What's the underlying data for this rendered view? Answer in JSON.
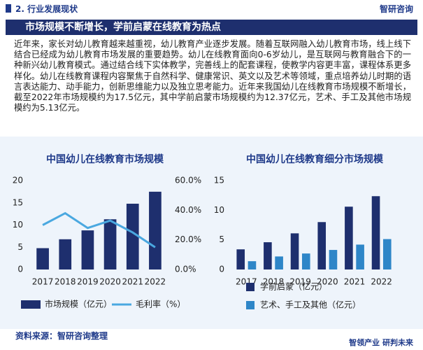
{
  "header": {
    "title": "2. 行业发展现状",
    "logo": "智研咨询"
  },
  "banner": "市场规模不断增长，学前启蒙在线教育为热点",
  "paragraph": "近年来，家长对幼儿教育越来越重视，幼儿教育产业逐步发展。随着互联网融入幼儿教育市场，线上线下结合已经成为幼儿教育市场发展的重要趋势。幼儿在线教育面向0-6岁幼儿，是互联网与教育融合下的一种新兴幼儿教育模式。通过结合线下实体教学，完善线上的配套课程，使教学内容更丰富，课程体系更多样化。幼儿在线教育课程内容聚焦于自然科学、健康常识、英文以及艺术等领域，重点培养幼儿时期的语言表达能力、动手能力，创新思维能力以及独立思考能力。近年来我国幼儿在线教育市场规模不断增长，截至2022年市场规模约为17.5亿元，其中学前启蒙市场规模约为12.37亿元，艺术、手工及其他市场规模约为5.13亿元。",
  "chart_data": [
    {
      "type": "combo",
      "title": "中国幼儿在线教育市场规模",
      "categories": [
        "2017",
        "2018",
        "2019",
        "2020",
        "2021",
        "2022"
      ],
      "series": [
        {
          "name": "市场规模（亿元）",
          "color": "#1e2f6e",
          "values": [
            4.8,
            6.8,
            8.8,
            11.3,
            14.8,
            17.5
          ]
        },
        {
          "name": "毛利率（%）",
          "color": "#4aa8e0",
          "values": [
            30,
            38,
            28,
            33,
            25,
            15
          ],
          "axis": "y2"
        }
      ],
      "ylim": [
        0,
        20
      ],
      "yticks": [
        0,
        5,
        10,
        15,
        20
      ],
      "y2lim": [
        0,
        60
      ],
      "y2ticks": [
        {
          "value": 0,
          "label": "0.0%"
        },
        {
          "value": 20,
          "label": "20.0%"
        },
        {
          "value": 40,
          "label": "40.0%"
        },
        {
          "value": 60,
          "label": "60.0%"
        }
      ],
      "legend": "bottom"
    },
    {
      "type": "bar",
      "title": "中国幼儿在线教育细分市场规模",
      "categories": [
        "2017",
        "2018",
        "2019",
        "2020",
        "2021",
        "2022"
      ],
      "series": [
        {
          "name": "学前启蒙（亿元）",
          "color": "#1e2f6e",
          "values": [
            3.4,
            4.6,
            6.1,
            8.0,
            10.6,
            12.37
          ]
        },
        {
          "name": "艺术、手工及其他（亿元）",
          "color": "#2e86c8",
          "values": [
            1.4,
            2.2,
            2.7,
            3.3,
            4.2,
            5.13
          ]
        }
      ],
      "ylim": [
        0,
        15
      ],
      "yticks": [
        0,
        5,
        10,
        15
      ],
      "legend": "bottom"
    }
  ],
  "source": "资料来源：智研咨询整理",
  "footer": "智领产业  研判未来"
}
